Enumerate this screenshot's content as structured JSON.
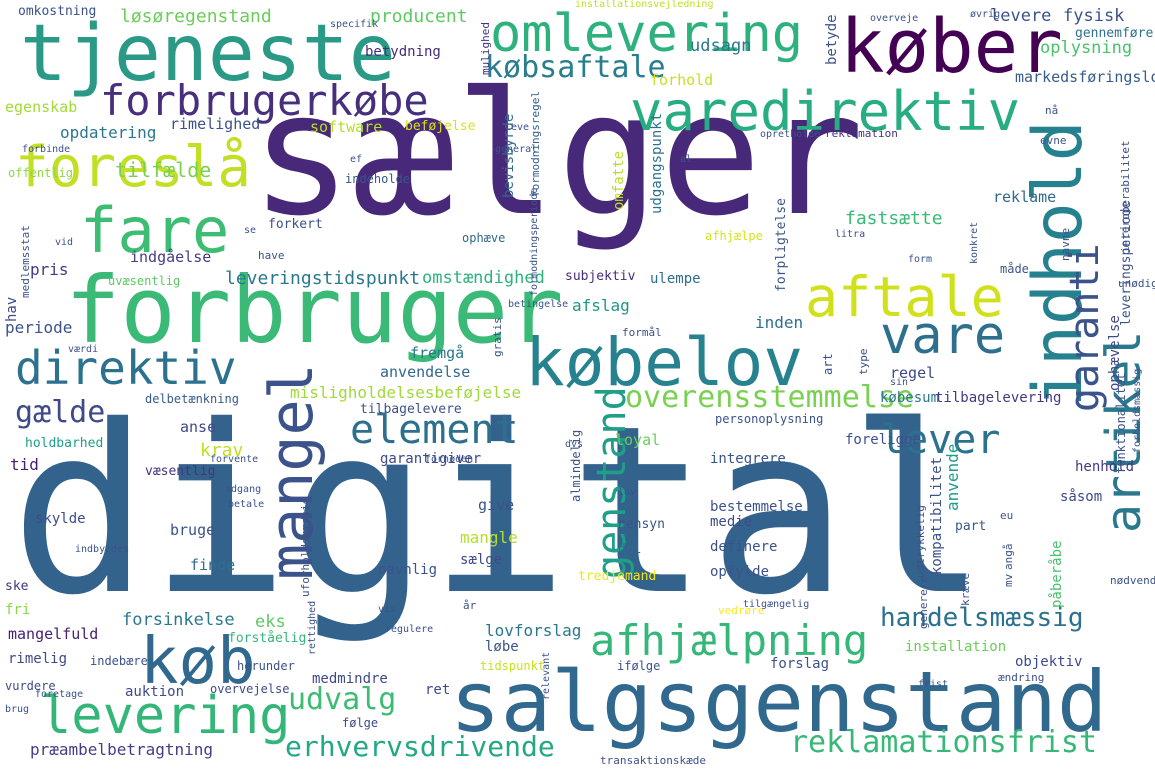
{
  "words": [
    {
      "text": "digital",
      "color": "#33638d"
    },
    {
      "text": "sælger",
      "color": "#482878"
    },
    {
      "text": "salgsgenstand",
      "color": "#31688e"
    },
    {
      "text": "forbruger",
      "color": "#3aba76"
    },
    {
      "text": "købelov",
      "color": "#26828e"
    },
    {
      "text": "tjeneste",
      "color": "#2a9a87"
    },
    {
      "text": "køber",
      "color": "#440154"
    },
    {
      "text": "omlevering",
      "color": "#2db27d"
    },
    {
      "text": "varedirektiv",
      "color": "#27ad81"
    },
    {
      "text": "indhold",
      "color": "#26818e"
    },
    {
      "text": "forbrugerkøbe",
      "color": "#472f7d"
    },
    {
      "text": "foreslå",
      "color": "#c2df23"
    },
    {
      "text": "fare",
      "color": "#3dbc74"
    },
    {
      "text": "aftale",
      "color": "#d0e11c"
    },
    {
      "text": "vare",
      "color": "#2e6f8e"
    },
    {
      "text": "mangel",
      "color": "#3b528b"
    },
    {
      "text": "element",
      "color": "#2d708e"
    },
    {
      "text": "direktiv",
      "color": "#2c728e"
    },
    {
      "text": "levering",
      "color": "#34b679"
    },
    {
      "text": "køb",
      "color": "#31688e"
    },
    {
      "text": "afhjælpning",
      "color": "#35b779"
    },
    {
      "text": "artikel",
      "color": "#2a788e"
    },
    {
      "text": "garanti",
      "color": "#3b528b"
    },
    {
      "text": "genstand",
      "color": "#1f9f88"
    },
    {
      "text": "lever",
      "color": "#2c718e"
    },
    {
      "text": "overensstemmelse",
      "color": "#7ad151"
    },
    {
      "text": "handelsmæssig",
      "color": "#2c728e"
    },
    {
      "text": "reklamationsfrist",
      "color": "#37b878"
    },
    {
      "text": "erhvervsdrivende",
      "color": "#22a884"
    },
    {
      "text": "udvalg",
      "color": "#3fbc73"
    },
    {
      "text": "købsaftale",
      "color": "#287d8e"
    },
    {
      "text": "gælde",
      "color": "#3e4a89"
    },
    {
      "text": "løsøregenstand",
      "color": "#6ccd5a"
    },
    {
      "text": "producent",
      "color": "#5ec962"
    },
    {
      "text": "levere",
      "color": "#3b528b"
    },
    {
      "text": "fysisk",
      "color": "#3b528b"
    },
    {
      "text": "udsagn",
      "color": "#2a788e"
    },
    {
      "text": "oplysning",
      "color": "#4ac16d"
    },
    {
      "text": "forhold",
      "color": "#c8e020"
    },
    {
      "text": "markedsføringslov",
      "color": "#365c8d"
    },
    {
      "text": "betydning",
      "color": "#472d7b"
    },
    {
      "text": "mulighed",
      "color": "#46337f"
    },
    {
      "text": "betyde",
      "color": "#3b528b"
    },
    {
      "text": "gennemføre",
      "color": "#2c718e"
    },
    {
      "text": "egenskab",
      "color": "#a2da37"
    },
    {
      "text": "opdatering",
      "color": "#2a778e"
    },
    {
      "text": "rimelighed",
      "color": "#3b528b"
    },
    {
      "text": "software",
      "color": "#b5de2b"
    },
    {
      "text": "beføjelse",
      "color": "#d8e219"
    },
    {
      "text": "reklamation",
      "color": "#46327e"
    },
    {
      "text": "tilfælde",
      "color": "#7ad151"
    },
    {
      "text": "offentlig",
      "color": "#90d743"
    },
    {
      "text": "indeholde",
      "color": "#39558c"
    },
    {
      "text": "bevisbyrde",
      "color": "#2f6b8e"
    },
    {
      "text": "formodningsregel",
      "color": "#34618d"
    },
    {
      "text": "udgangspunkt",
      "color": "#2c728e"
    },
    {
      "text": "omfatte",
      "color": "#bddf26"
    },
    {
      "text": "reklame",
      "color": "#31688e"
    },
    {
      "text": "fastsætte",
      "color": "#3aba76"
    },
    {
      "text": "forkert",
      "color": "#3b528b"
    },
    {
      "text": "ophæve",
      "color": "#306a8e"
    },
    {
      "text": "afhjælpe",
      "color": "#d5e21a"
    },
    {
      "text": "forpligtelse",
      "color": "#39568c"
    },
    {
      "text": "indgåelse",
      "color": "#433e85"
    },
    {
      "text": "pris",
      "color": "#443a83"
    },
    {
      "text": "leveringstidspunkt",
      "color": "#2a788e"
    },
    {
      "text": "omstændighed",
      "color": "#2db27d"
    },
    {
      "text": "subjektiv",
      "color": "#472c7a"
    },
    {
      "text": "ulempe",
      "color": "#2f6c8e"
    },
    {
      "text": "leveringsperiode",
      "color": "#3a548c"
    },
    {
      "text": "afslag",
      "color": "#1f968b"
    },
    {
      "text": "inden",
      "color": "#2d718e"
    },
    {
      "text": "periode",
      "color": "#3b528b"
    },
    {
      "text": "hav",
      "color": "#3e4989"
    },
    {
      "text": "uvæsentlig",
      "color": "#5ec962"
    },
    {
      "text": "fremgå",
      "color": "#2a788e"
    },
    {
      "text": "anvendelse",
      "color": "#31688e"
    },
    {
      "text": "misligholdelsesbeføjelse",
      "color": "#a0da39"
    },
    {
      "text": "regel",
      "color": "#3e4a89"
    },
    {
      "text": "købesum",
      "color": "#2a788e"
    },
    {
      "text": "ophævelse",
      "color": "#3e4989"
    },
    {
      "text": "delbetænkning",
      "color": "#365c8d"
    },
    {
      "text": "tilbagelevere",
      "color": "#3b528b"
    },
    {
      "text": "tilbagelevering",
      "color": "#443983"
    },
    {
      "text": "personoplysning",
      "color": "#3b528b"
    },
    {
      "text": "anse",
      "color": "#3e4a89"
    },
    {
      "text": "krav",
      "color": "#c2df23"
    },
    {
      "text": "loyal",
      "color": "#6ccd5a"
    },
    {
      "text": "foreligge",
      "color": "#3b528b"
    },
    {
      "text": "integrere",
      "color": "#3a548c"
    },
    {
      "text": "anvende",
      "color": "#1f9e89"
    },
    {
      "text": "garantigiver",
      "color": "#3e4a89"
    },
    {
      "text": "holdbarhed",
      "color": "#1f9f88"
    },
    {
      "text": "henhold",
      "color": "#443983"
    },
    {
      "text": "funktionalitet",
      "color": "#3b528b"
    },
    {
      "text": "tid",
      "color": "#482071"
    },
    {
      "text": "væsentlig",
      "color": "#46337f"
    },
    {
      "text": "give",
      "color": "#3b528b"
    },
    {
      "text": "bestemmelse",
      "color": "#3b528b"
    },
    {
      "text": "medie",
      "color": "#3e4a89"
    },
    {
      "text": "kompatibilitet",
      "color": "#3b528b"
    },
    {
      "text": "påberåbe",
      "color": "#4ac16d"
    },
    {
      "text": "såsom",
      "color": "#3e4a89"
    },
    {
      "text": "skylde",
      "color": "#3e4a89"
    },
    {
      "text": "hensyn",
      "color": "#3b528b"
    },
    {
      "text": "bruge",
      "color": "#3b528b"
    },
    {
      "text": "mangle",
      "color": "#b5de2b"
    },
    {
      "text": "definere",
      "color": "#3b528b"
    },
    {
      "text": "part",
      "color": "#365c8d"
    },
    {
      "text": "finde",
      "color": "#2e6f8e"
    },
    {
      "text": "sælge",
      "color": "#3e4a89"
    },
    {
      "text": "del",
      "color": "#31688e"
    },
    {
      "text": "navnlig",
      "color": "#3b528b"
    },
    {
      "text": "opfylde",
      "color": "#3b528b"
    },
    {
      "text": "tredjemand",
      "color": "#f1e51d"
    },
    {
      "text": "ske",
      "color": "#46337f"
    },
    {
      "text": "fri",
      "color": "#8bd646"
    },
    {
      "text": "forsinkelse",
      "color": "#2a788e"
    },
    {
      "text": "eks",
      "color": "#5ec962"
    },
    {
      "text": "mangelfuld",
      "color": "#482071"
    },
    {
      "text": "forståelig",
      "color": "#35b779"
    },
    {
      "text": "lovforslag",
      "color": "#2a788e"
    },
    {
      "text": "løbe",
      "color": "#3b528b"
    },
    {
      "text": "installation",
      "color": "#6ccd5a"
    },
    {
      "text": "vedrøre",
      "color": "#fde725"
    },
    {
      "text": "rimelig",
      "color": "#3e4a89"
    },
    {
      "text": "indebære",
      "color": "#3b528b"
    },
    {
      "text": "herunder",
      "color": "#3b528b"
    },
    {
      "text": "tidspunkt",
      "color": "#c8e020"
    },
    {
      "text": "ifølge",
      "color": "#3b528b"
    },
    {
      "text": "forslag",
      "color": "#3b528b"
    },
    {
      "text": "objektiv",
      "color": "#3e4a89"
    },
    {
      "text": "medmindre",
      "color": "#3e4a89"
    },
    {
      "text": "ret",
      "color": "#3e4a89"
    },
    {
      "text": "auktion",
      "color": "#3e4a89"
    },
    {
      "text": "overvejelse",
      "color": "#3e4a89"
    },
    {
      "text": "vurdere",
      "color": "#3e4a89"
    },
    {
      "text": "følge",
      "color": "#3e4a89"
    },
    {
      "text": "præambelbetragtning",
      "color": "#433e85"
    },
    {
      "text": "transaktionskæde",
      "color": "#3b528b"
    },
    {
      "text": "omkostning",
      "color": "#3b528b"
    },
    {
      "text": "specifik",
      "color": "#3b528b"
    },
    {
      "text": "installationsvejledning",
      "color": "#c2df23"
    },
    {
      "text": "overveje",
      "color": "#3b528b"
    },
    {
      "text": "øvrig",
      "color": "#3b528b"
    },
    {
      "text": "nå",
      "color": "#3b528b"
    },
    {
      "text": "evne",
      "color": "#3b528b"
    },
    {
      "text": "interoperabilitet",
      "color": "#3b528b"
    },
    {
      "text": "formål",
      "color": "#3b528b"
    },
    {
      "text": "art",
      "color": "#3b528b"
    },
    {
      "text": "type",
      "color": "#3b528b"
    },
    {
      "text": "unødig",
      "color": "#3b528b"
    },
    {
      "text": "nødvendig",
      "color": "#3b528b"
    },
    {
      "text": "gratis",
      "color": "#3b528b"
    },
    {
      "text": "almindelig",
      "color": "#3b528b"
    },
    {
      "text": "uforholdsmæssig",
      "color": "#3b528b"
    },
    {
      "text": "udtrykkelig",
      "color": "#3b528b"
    },
    {
      "text": "generere",
      "color": "#3b528b"
    },
    {
      "text": "kræve",
      "color": "#3b528b"
    },
    {
      "text": "angå",
      "color": "#3b528b"
    },
    {
      "text": "eu",
      "color": "#3b528b"
    },
    {
      "text": "mv",
      "color": "#3b528b"
    },
    {
      "text": "år",
      "color": "#3b528b"
    },
    {
      "text": "vis",
      "color": "#3b528b"
    },
    {
      "text": "regulere",
      "color": "#3b528b"
    },
    {
      "text": "relevant",
      "color": "#3b528b"
    },
    {
      "text": "rettighed",
      "color": "#3b528b"
    },
    {
      "text": "frist",
      "color": "#3b528b"
    },
    {
      "text": "ændring",
      "color": "#3b528b"
    },
    {
      "text": "tilgængelig",
      "color": "#3b528b"
    },
    {
      "text": "medlemsstat",
      "color": "#3b528b"
    },
    {
      "text": "vid",
      "color": "#3b528b"
    },
    {
      "text": "se",
      "color": "#3b528b"
    },
    {
      "text": "have",
      "color": "#3b528b"
    },
    {
      "text": "værdi",
      "color": "#3b528b"
    },
    {
      "text": "litra",
      "color": "#3b528b"
    },
    {
      "text": "form",
      "color": "#3b528b"
    },
    {
      "text": "måde",
      "color": "#3b528b"
    },
    {
      "text": "navne",
      "color": "#3b528b"
    },
    {
      "text": "konkret",
      "color": "#3b528b"
    },
    {
      "text": "betingelse",
      "color": "#3b528b"
    },
    {
      "text": "sin",
      "color": "#3b528b"
    },
    {
      "text": "forholdsmæssig",
      "color": "#3b528b"
    },
    {
      "text": "dvs",
      "color": "#3b528b"
    },
    {
      "text": "lov",
      "color": "#3b528b"
    },
    {
      "text": "forvente",
      "color": "#3b528b"
    },
    {
      "text": "fornøden",
      "color": "#3b528b"
    },
    {
      "text": "adgang",
      "color": "#3b528b"
    },
    {
      "text": "betale",
      "color": "#3b528b"
    },
    {
      "text": "indbyrdes",
      "color": "#3b528b"
    },
    {
      "text": "foretage",
      "color": "#3b528b"
    },
    {
      "text": "brug",
      "color": "#3b528b"
    },
    {
      "text": "ef",
      "color": "#3b528b"
    },
    {
      "text": "general",
      "color": "#3b528b"
    },
    {
      "text": "formodningsperiode",
      "color": "#3b528b"
    },
    {
      "text": "forbinde",
      "color": "#3b528b"
    },
    {
      "text": "leve",
      "color": "#3b528b"
    },
    {
      "text": "opretholde",
      "color": "#3b528b"
    },
    {
      "text": "al",
      "color": "#3b528b"
    }
  ]
}
